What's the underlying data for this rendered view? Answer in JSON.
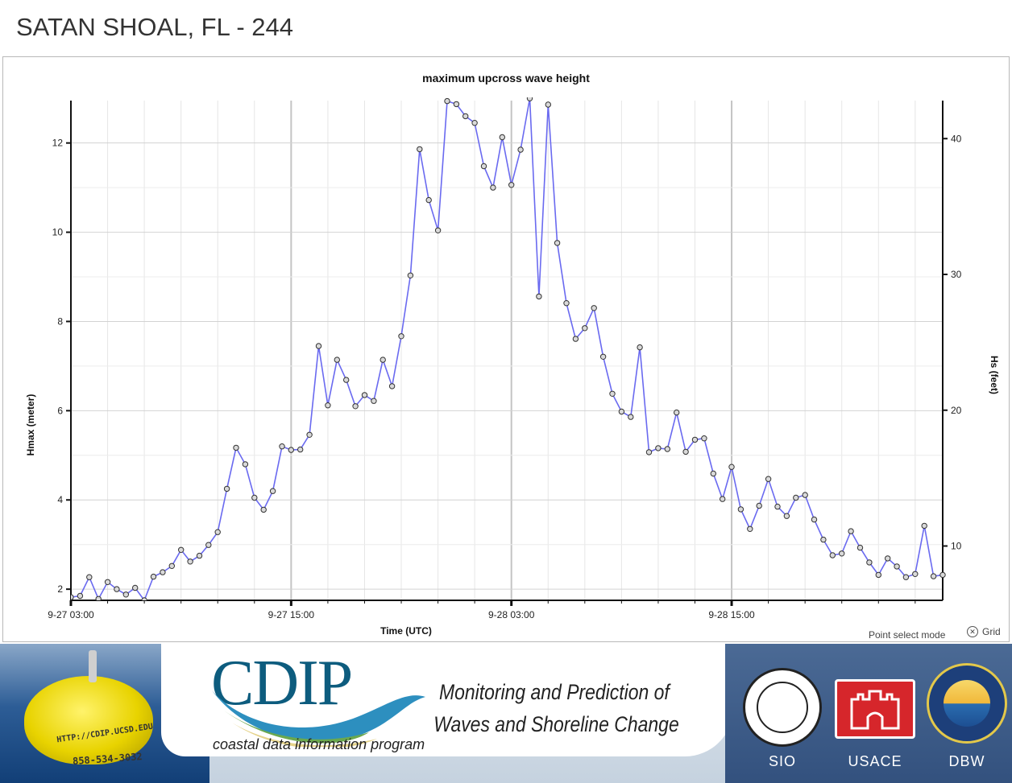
{
  "page": {
    "station_title": "SATAN SHOAL, FL - 244"
  },
  "controls": {
    "point_mode": "Point select mode",
    "grid_label": "Grid",
    "grid_icon": "x-circle-icon"
  },
  "banner": {
    "logo_text": "CDIP",
    "logo_subtitle": "coastal data information program",
    "tagline_line1": "Monitoring and Prediction of",
    "tagline_line2": "Waves and Shoreline Change",
    "buoy_text1": "HTTP://CDIP.UCSD.EDU",
    "buoy_text2": "858-534-3032",
    "partners": [
      {
        "label": "SIO"
      },
      {
        "label": "USACE"
      },
      {
        "label": "DBW"
      }
    ]
  },
  "chart_data": {
    "type": "line",
    "title": "maximum upcross wave height",
    "xlabel": "Time (UTC)",
    "ylabel": "Hmax (meter)",
    "y2label": "Hs (feet)",
    "x_ticks": [
      "9-27 03:00",
      "9-27 15:00",
      "9-28 03:00",
      "9-28 15:00"
    ],
    "y_ticks": [
      2,
      4,
      6,
      8,
      10,
      12
    ],
    "y2_ticks": [
      10,
      20,
      30,
      40
    ],
    "ylim": [
      1.75,
      12.95
    ],
    "y2lim": [
      6.0,
      42.8
    ],
    "xlim_hours_from_first_tick": [
      0,
      47.5
    ],
    "interval_minutes": 30,
    "grid": true,
    "line_color": "#6a6af0",
    "series": [
      {
        "values": [
          1.82,
          1.85,
          2.27,
          1.78,
          2.16,
          2.0,
          1.88,
          2.03,
          1.75,
          2.28,
          2.38,
          2.52,
          2.88,
          2.62,
          2.75,
          2.99,
          3.28,
          4.25,
          5.17,
          4.8,
          4.05,
          3.78,
          4.2,
          5.2,
          5.12,
          5.13,
          5.46,
          7.45,
          6.12,
          7.14,
          6.69,
          6.1,
          6.35,
          6.22,
          7.14,
          6.55,
          7.67,
          9.03,
          11.86,
          10.72,
          10.04,
          12.94,
          12.87,
          12.6,
          12.45,
          11.48,
          11.0,
          12.13,
          11.06,
          11.85,
          13.0,
          8.56,
          12.86,
          9.76,
          8.41,
          7.61,
          7.85,
          8.3,
          7.21,
          6.38,
          5.98,
          5.86,
          7.42,
          5.07,
          5.16,
          5.14,
          5.96,
          5.08,
          5.35,
          5.38,
          4.59,
          4.02,
          4.74,
          3.79,
          3.35,
          3.87,
          4.47,
          3.85,
          3.64,
          4.05,
          4.11,
          3.56,
          3.11,
          2.76,
          2.8,
          3.3,
          2.93,
          2.6,
          2.32,
          2.69,
          2.51,
          2.27,
          2.34,
          3.42,
          2.29,
          2.32
        ]
      }
    ]
  }
}
